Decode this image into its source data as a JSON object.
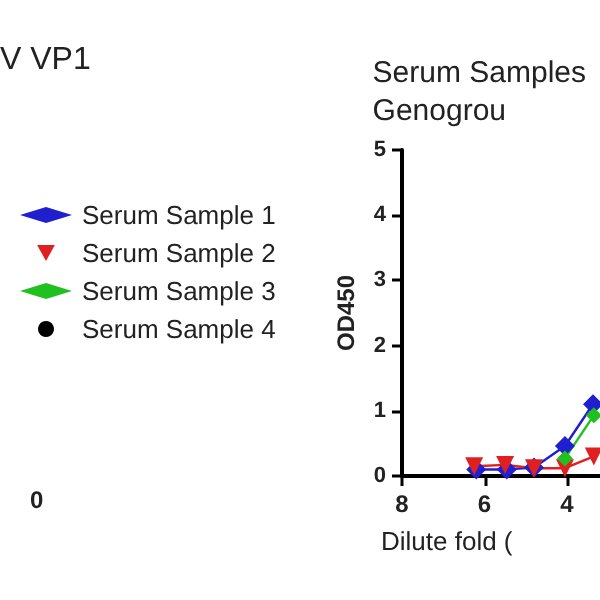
{
  "chart_data": {
    "type": "line",
    "title": "Serum Samples\nGenogrou",
    "xlabel": "Dilute fold (",
    "ylabel": "OD450",
    "annotations": [
      "V VP1",
      "0"
    ],
    "xlim": [
      8,
      3.2
    ],
    "xticks": [
      8,
      6,
      4
    ],
    "ylim": [
      0,
      5
    ],
    "yticks": [
      0,
      1,
      2,
      3,
      4,
      5
    ],
    "grid": false,
    "legend": "left",
    "series": [
      {
        "name": "Serum Sample 1",
        "color": "#1f1fd0",
        "marker": "diamond",
        "x": [
          6.2,
          5.46,
          4.8,
          4.05,
          3.37
        ],
        "values": [
          0.1,
          0.1,
          0.13,
          0.46,
          1.1
        ]
      },
      {
        "name": "Serum Sample 2",
        "color": "#e02020",
        "marker": "triangle",
        "x": [
          6.25,
          5.5,
          4.8,
          4.05,
          3.35
        ],
        "values": [
          0.15,
          0.17,
          0.12,
          0.12,
          0.3
        ]
      },
      {
        "name": "Serum Sample 3",
        "color": "#20c020",
        "marker": "diamond",
        "x": [
          4.05,
          3.35
        ],
        "values": [
          0.27,
          0.93
        ]
      },
      {
        "name": "Serum Sample 4",
        "color": "#000000",
        "marker": "circle"
      }
    ]
  }
}
